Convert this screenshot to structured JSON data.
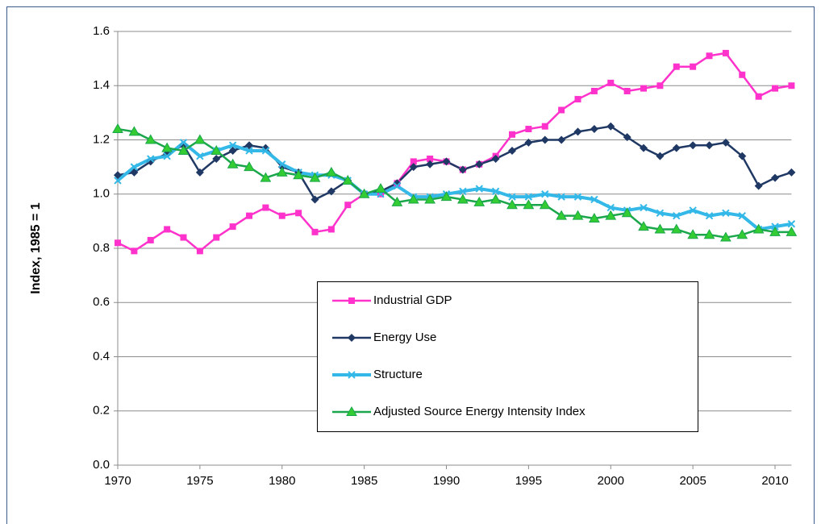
{
  "chart_data": {
    "type": "line",
    "y_label": "Index, 1985 = 1",
    "x": [
      1970,
      1971,
      1972,
      1973,
      1974,
      1975,
      1976,
      1977,
      1978,
      1979,
      1980,
      1981,
      1982,
      1983,
      1984,
      1985,
      1986,
      1987,
      1988,
      1989,
      1990,
      1991,
      1992,
      1993,
      1994,
      1995,
      1996,
      1997,
      1998,
      1999,
      2000,
      2001,
      2002,
      2003,
      2004,
      2005,
      2006,
      2007,
      2008,
      2009,
      2010,
      2011
    ],
    "xlim": [
      1970,
      2011
    ],
    "xticks": [
      1970,
      1975,
      1980,
      1985,
      1990,
      1995,
      2000,
      2005,
      2010
    ],
    "ylim": [
      0,
      1.6
    ],
    "yticks": [
      {
        "value": 0,
        "label": "0.0"
      },
      0.2,
      0.4,
      0.6,
      0.8,
      {
        "value": 1,
        "label": "1.0"
      },
      1.2,
      1.4,
      1.6
    ],
    "grid": true,
    "series": [
      {
        "name": "Industrial GDP",
        "color": "#ff33cc",
        "marker": "square",
        "values": [
          0.82,
          0.79,
          0.83,
          0.87,
          0.84,
          0.79,
          0.84,
          0.88,
          0.92,
          0.95,
          0.92,
          0.93,
          0.86,
          0.87,
          0.96,
          1.0,
          1.0,
          1.04,
          1.12,
          1.13,
          1.12,
          1.09,
          1.11,
          1.14,
          1.22,
          1.24,
          1.25,
          1.31,
          1.35,
          1.38,
          1.41,
          1.38,
          1.39,
          1.4,
          1.47,
          1.47,
          1.51,
          1.52,
          1.44,
          1.36,
          1.39,
          1.4
        ]
      },
      {
        "name": "Energy Use",
        "color": "#1f3864",
        "marker": "diamond",
        "values": [
          1.07,
          1.08,
          1.12,
          1.15,
          1.18,
          1.08,
          1.13,
          1.16,
          1.18,
          1.17,
          1.1,
          1.08,
          0.98,
          1.01,
          1.05,
          1.0,
          1.01,
          1.04,
          1.1,
          1.11,
          1.12,
          1.09,
          1.11,
          1.13,
          1.16,
          1.19,
          1.2,
          1.2,
          1.23,
          1.24,
          1.25,
          1.21,
          1.17,
          1.14,
          1.17,
          1.18,
          1.18,
          1.19,
          1.14,
          1.03,
          1.06,
          1.08
        ]
      },
      {
        "name": "Structure",
        "color": "#33b8e8",
        "marker": "x",
        "values": [
          1.05,
          1.1,
          1.13,
          1.14,
          1.19,
          1.14,
          1.16,
          1.18,
          1.16,
          1.16,
          1.11,
          1.08,
          1.07,
          1.07,
          1.05,
          1.0,
          1.0,
          1.03,
          0.99,
          0.99,
          1.0,
          1.01,
          1.02,
          1.01,
          0.99,
          0.99,
          1.0,
          0.99,
          0.99,
          0.98,
          0.95,
          0.94,
          0.95,
          0.93,
          0.92,
          0.94,
          0.92,
          0.93,
          0.92,
          0.87,
          0.88,
          0.89
        ]
      },
      {
        "name": "Adjusted Source Energy Intensity Index",
        "color": "#1aa64a",
        "marker": "triangle",
        "values": [
          1.24,
          1.23,
          1.2,
          1.17,
          1.16,
          1.2,
          1.16,
          1.11,
          1.1,
          1.06,
          1.08,
          1.07,
          1.06,
          1.08,
          1.05,
          1.0,
          1.02,
          0.97,
          0.98,
          0.98,
          0.99,
          0.98,
          0.97,
          0.98,
          0.96,
          0.96,
          0.96,
          0.92,
          0.92,
          0.91,
          0.92,
          0.93,
          0.88,
          0.87,
          0.87,
          0.85,
          0.85,
          0.84,
          0.85,
          0.87,
          0.86,
          0.86
        ]
      }
    ]
  }
}
